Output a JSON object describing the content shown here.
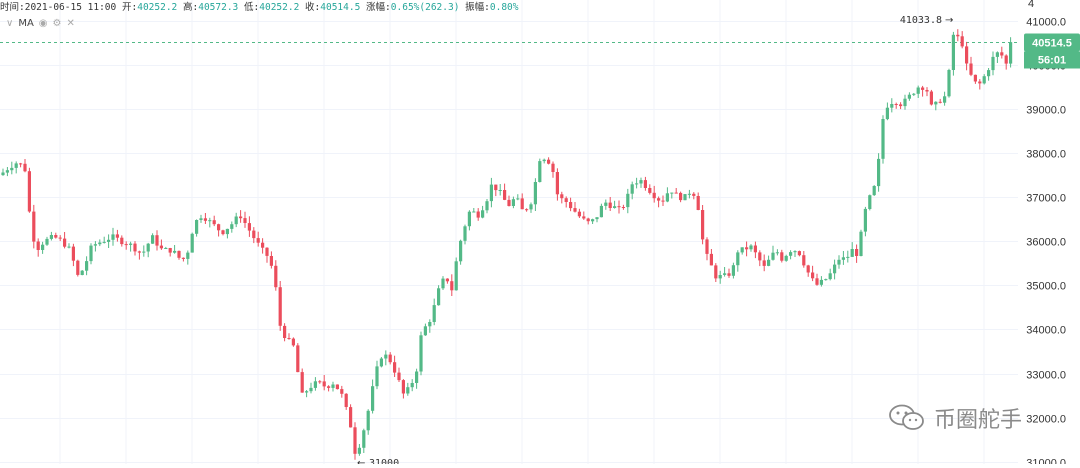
{
  "header": {
    "time_label": "时间:",
    "time_value": "2021-06-15 11:00",
    "open_label": "开:",
    "open_value": "40252.2",
    "high_label": "高:",
    "high_value": "40572.3",
    "low_label": "低:",
    "low_value": "40252.2",
    "close_label": "收:",
    "close_value": "40514.5",
    "change_label": "涨幅:",
    "change_value": "0.65%(262.3)",
    "amplitude_label": "振幅:",
    "amplitude_value": "0.80%"
  },
  "indicator": {
    "name": "MA",
    "collapse_icon": "chevron-down-icon",
    "visibility_icon": "eye-icon",
    "settings_icon": "gear-icon",
    "close_icon": "close-icon"
  },
  "price_axis": {
    "current_price_label": "40514.5",
    "countdown_label": "56:01",
    "top_stub": "4"
  },
  "annotations": {
    "high_label": "41033.8",
    "low_label": "31000"
  },
  "watermark": {
    "text": "币圈舵手",
    "icon": "wechat-icon"
  },
  "colors": {
    "up": "#53b987",
    "down": "#eb4d5c",
    "grid": "#f0f3fa",
    "price_line": "#53b987",
    "axis_text": "#333333"
  },
  "chart_data": {
    "type": "candlestick",
    "y_ticks": [
      31000.0,
      32000.0,
      33000.0,
      34000.0,
      35000.0,
      36000.0,
      37000.0,
      38000.0,
      39000.0,
      40000.0,
      41000.0
    ],
    "ylim": [
      30950,
      41470
    ],
    "current_price": 40514.5,
    "high_marker": 41033.8,
    "low_marker": 31000,
    "grid": true,
    "path": [
      [
        0,
        37500
      ],
      [
        10,
        37700
      ],
      [
        18,
        37800
      ],
      [
        26,
        37600
      ],
      [
        30,
        36500
      ],
      [
        36,
        35800
      ],
      [
        44,
        36000
      ],
      [
        54,
        36100
      ],
      [
        62,
        36000
      ],
      [
        70,
        35800
      ],
      [
        78,
        35200
      ],
      [
        84,
        35400
      ],
      [
        92,
        35900
      ],
      [
        102,
        36000
      ],
      [
        112,
        36100
      ],
      [
        122,
        36000
      ],
      [
        132,
        35900
      ],
      [
        142,
        35700
      ],
      [
        152,
        36100
      ],
      [
        162,
        35800
      ],
      [
        172,
        35800
      ],
      [
        180,
        35600
      ],
      [
        186,
        35600
      ],
      [
        194,
        36400
      ],
      [
        202,
        36600
      ],
      [
        212,
        36400
      ],
      [
        222,
        36200
      ],
      [
        232,
        36400
      ],
      [
        240,
        36600
      ],
      [
        248,
        36300
      ],
      [
        256,
        36000
      ],
      [
        262,
        35800
      ],
      [
        270,
        35600
      ],
      [
        276,
        34900
      ],
      [
        280,
        34100
      ],
      [
        286,
        33800
      ],
      [
        294,
        33600
      ],
      [
        298,
        33000
      ],
      [
        302,
        32500
      ],
      [
        310,
        32700
      ],
      [
        318,
        32800
      ],
      [
        326,
        32700
      ],
      [
        334,
        32800
      ],
      [
        342,
        32500
      ],
      [
        350,
        31900
      ],
      [
        356,
        31100
      ],
      [
        362,
        31600
      ],
      [
        366,
        31900
      ],
      [
        372,
        32600
      ],
      [
        380,
        33400
      ],
      [
        388,
        33400
      ],
      [
        396,
        33000
      ],
      [
        404,
        32500
      ],
      [
        410,
        32700
      ],
      [
        416,
        33000
      ],
      [
        422,
        34000
      ],
      [
        428,
        34100
      ],
      [
        434,
        34500
      ],
      [
        440,
        35000
      ],
      [
        446,
        35200
      ],
      [
        452,
        34900
      ],
      [
        458,
        35800
      ],
      [
        464,
        36300
      ],
      [
        470,
        36700
      ],
      [
        478,
        36600
      ],
      [
        486,
        36900
      ],
      [
        492,
        37300
      ],
      [
        500,
        37100
      ],
      [
        508,
        36800
      ],
      [
        516,
        37000
      ],
      [
        522,
        36700
      ],
      [
        530,
        36800
      ],
      [
        536,
        37400
      ],
      [
        540,
        37900
      ],
      [
        546,
        37900
      ],
      [
        552,
        37700
      ],
      [
        558,
        37000
      ],
      [
        566,
        36900
      ],
      [
        574,
        36700
      ],
      [
        582,
        36500
      ],
      [
        590,
        36400
      ],
      [
        598,
        36600
      ],
      [
        604,
        36900
      ],
      [
        612,
        36800
      ],
      [
        620,
        36700
      ],
      [
        626,
        36900
      ],
      [
        632,
        37300
      ],
      [
        640,
        37400
      ],
      [
        648,
        37200
      ],
      [
        656,
        37000
      ],
      [
        662,
        36900
      ],
      [
        670,
        37200
      ],
      [
        678,
        37000
      ],
      [
        686,
        37000
      ],
      [
        692,
        37200
      ],
      [
        698,
        36800
      ],
      [
        704,
        35800
      ],
      [
        710,
        35500
      ],
      [
        716,
        35200
      ],
      [
        724,
        35200
      ],
      [
        732,
        35300
      ],
      [
        738,
        35800
      ],
      [
        744,
        35800
      ],
      [
        750,
        35900
      ],
      [
        756,
        35700
      ],
      [
        764,
        35400
      ],
      [
        770,
        35600
      ],
      [
        776,
        35800
      ],
      [
        782,
        35600
      ],
      [
        790,
        35800
      ],
      [
        798,
        35800
      ],
      [
        804,
        35500
      ],
      [
        810,
        35200
      ],
      [
        816,
        35000
      ],
      [
        824,
        35100
      ],
      [
        832,
        35300
      ],
      [
        838,
        35600
      ],
      [
        846,
        35600
      ],
      [
        852,
        35800
      ],
      [
        858,
        35700
      ],
      [
        864,
        36600
      ],
      [
        870,
        37000
      ],
      [
        876,
        37300
      ],
      [
        880,
        38100
      ],
      [
        884,
        39000
      ],
      [
        888,
        39100
      ],
      [
        894,
        39200
      ],
      [
        902,
        39100
      ],
      [
        910,
        39300
      ],
      [
        918,
        39500
      ],
      [
        926,
        39500
      ],
      [
        932,
        39000
      ],
      [
        940,
        39200
      ],
      [
        946,
        39300
      ],
      [
        950,
        40000
      ],
      [
        954,
        40800
      ],
      [
        958,
        40600
      ],
      [
        962,
        40500
      ],
      [
        966,
        40000
      ],
      [
        972,
        39700
      ],
      [
        978,
        39500
      ],
      [
        986,
        39800
      ],
      [
        994,
        40200
      ],
      [
        1000,
        40300
      ],
      [
        1006,
        40000
      ],
      [
        1012,
        40500
      ]
    ]
  }
}
